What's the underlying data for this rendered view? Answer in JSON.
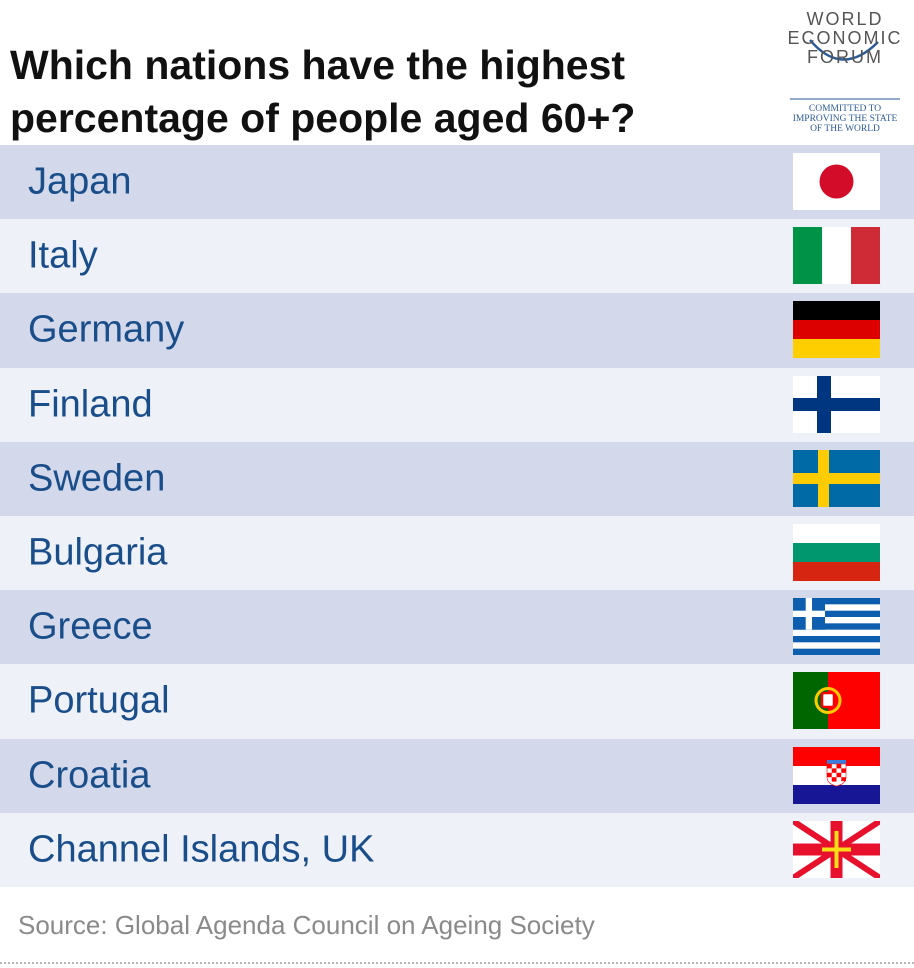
{
  "header": {
    "title": [
      "Which nations have the highest",
      "percentage of people aged 60+?"
    ],
    "logo": {
      "words": [
        "WORLD",
        "ECONOMIC",
        "FORUM"
      ],
      "tagline": [
        "COMMITTED TO",
        "IMPROVING THE STATE",
        "OF THE WORLD"
      ]
    }
  },
  "rows": [
    "Japan",
    "Italy",
    "Germany",
    "Finland",
    "Sweden",
    "Bulgaria",
    "Greece",
    "Portugal",
    "Croatia",
    "Channel Islands, UK"
  ],
  "source": "Source: Global Agenda Council on Ageing Society"
}
